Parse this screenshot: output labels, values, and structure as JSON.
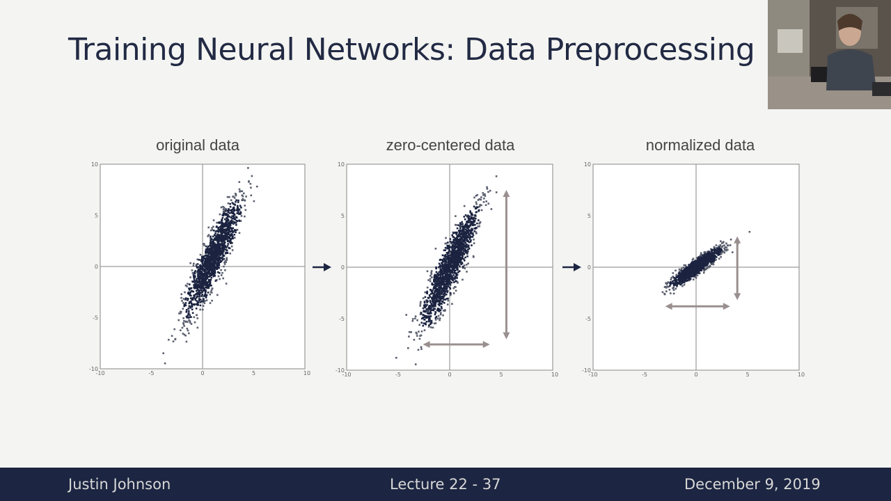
{
  "slide": {
    "title": "Training Neural Networks: Data Preprocessing"
  },
  "footer": {
    "author": "Justin Johnson",
    "lecture": "Lecture 22 - 37",
    "date": "December 9, 2019"
  },
  "chart_data": [
    {
      "type": "scatter",
      "title": "original data",
      "xlim": [
        -10,
        10
      ],
      "ylim": [
        -10,
        10
      ],
      "x_ticks": [
        "-10",
        "-5",
        "0",
        "5",
        "10"
      ],
      "y_ticks": [
        "10",
        "5",
        "0",
        "-5",
        "-10"
      ],
      "grid": false,
      "cluster": {
        "center": [
          1.0,
          0.8
        ],
        "major_axis_angle_deg": 66,
        "major_sd": 3.0,
        "minor_sd": 0.55,
        "point_count": 1500
      },
      "arrows": []
    },
    {
      "type": "scatter",
      "title": "zero-centered data",
      "xlim": [
        -10,
        10
      ],
      "ylim": [
        -10,
        10
      ],
      "x_ticks": [
        "-10",
        "-5",
        "0",
        "5",
        "10"
      ],
      "y_ticks": [
        "10",
        "5",
        "0",
        "-5",
        "-10"
      ],
      "grid": false,
      "cluster": {
        "center": [
          0.0,
          0.0
        ],
        "major_axis_angle_deg": 66,
        "major_sd": 3.0,
        "minor_sd": 0.55,
        "point_count": 1500
      },
      "arrows": [
        {
          "orientation": "vertical",
          "x": 5.5,
          "from": -7,
          "to": 7.5
        },
        {
          "orientation": "horizontal",
          "y": -7.5,
          "from": -2.6,
          "to": 3.9
        }
      ]
    },
    {
      "type": "scatter",
      "title": "normalized data",
      "xlim": [
        -10,
        10
      ],
      "ylim": [
        -10,
        10
      ],
      "x_ticks": [
        "-10",
        "-5",
        "0",
        "5",
        "10"
      ],
      "y_ticks": [
        "10",
        "5",
        "0",
        "-5",
        "-10"
      ],
      "grid": false,
      "cluster": {
        "center": [
          0.0,
          0.0
        ],
        "major_axis_angle_deg": 36,
        "major_sd": 1.45,
        "minor_sd": 0.3,
        "point_count": 1200
      },
      "arrows": [
        {
          "orientation": "vertical",
          "x": 4.0,
          "from": -3.2,
          "to": 3.0
        },
        {
          "orientation": "horizontal",
          "y": -3.8,
          "from": -3.0,
          "to": 3.3
        }
      ]
    }
  ]
}
